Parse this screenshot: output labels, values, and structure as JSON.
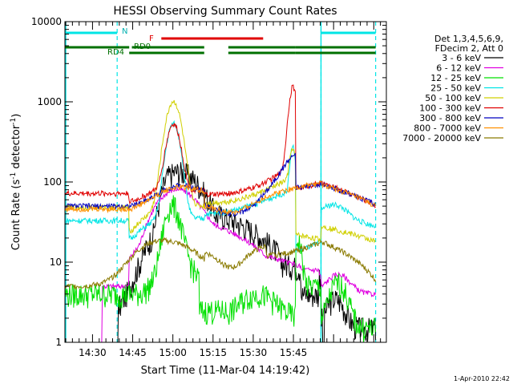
{
  "chart_data": {
    "type": "line",
    "title": "HESSI Observing Summary Count Rates",
    "xlabel": "Start Time (11-Mar-04 14:19:42)",
    "ylabel_main": "Count Rate (s",
    "ylabel_sup1": "-1",
    "ylabel_mid": " detector",
    "ylabel_sup2": "-1",
    "ylabel_end": ")",
    "yscale": "log",
    "ylim": [
      1,
      10000
    ],
    "xlim_minutes": [
      0,
      120
    ],
    "xtick_labels": [
      "14:30",
      "14:45",
      "15:00",
      "15:15",
      "15:30",
      "15:45"
    ],
    "ytick_labels": [
      "1",
      "10",
      "100",
      "1000",
      "10000"
    ],
    "timestamp": "1-Apr-2010 22:42",
    "legend": {
      "header1": "Det 1,3,4,5,6,9,",
      "header2": "FDecim 2, Att 0",
      "placement": "right"
    },
    "flag_labels": {
      "N": "N",
      "F": "F",
      "RD0": "RD0",
      "RD4": "RD4"
    },
    "flags": {
      "night": {
        "color": "#00e5e5",
        "segments": [
          [
            0,
            19.5
          ],
          [
            95.6,
            116
          ]
        ]
      },
      "flare": {
        "color": "#e00000",
        "segments": [
          [
            36,
            74
          ]
        ]
      },
      "rd0": {
        "color": "#007000",
        "segments": [
          [
            0,
            24
          ],
          [
            25,
            52
          ],
          [
            61,
            86
          ],
          [
            86,
            116
          ]
        ]
      },
      "rd4": {
        "color": "#007000",
        "segments": [
          [
            24,
            52
          ],
          [
            61,
            86
          ],
          [
            86,
            116
          ]
        ]
      }
    },
    "night_boundaries_minutes": [
      19.5,
      95.6,
      116
    ],
    "series": [
      {
        "name": "3 - 6 keV",
        "color": "#000000"
      },
      {
        "name": "6 - 12 keV",
        "color": "#e000e0"
      },
      {
        "name": "12 - 25 keV",
        "color": "#00e000"
      },
      {
        "name": "25 - 50 keV",
        "color": "#00e5e5"
      },
      {
        "name": "50 - 100 keV",
        "color": "#d0d000"
      },
      {
        "name": "100 - 300 keV",
        "color": "#e00000"
      },
      {
        "name": "300 - 800 keV",
        "color": "#0000c0"
      },
      {
        "name": "800 - 7000 keV",
        "color": "#ff9000"
      },
      {
        "name": "7000 - 20000 keV",
        "color": "#8a7a00"
      }
    ]
  }
}
